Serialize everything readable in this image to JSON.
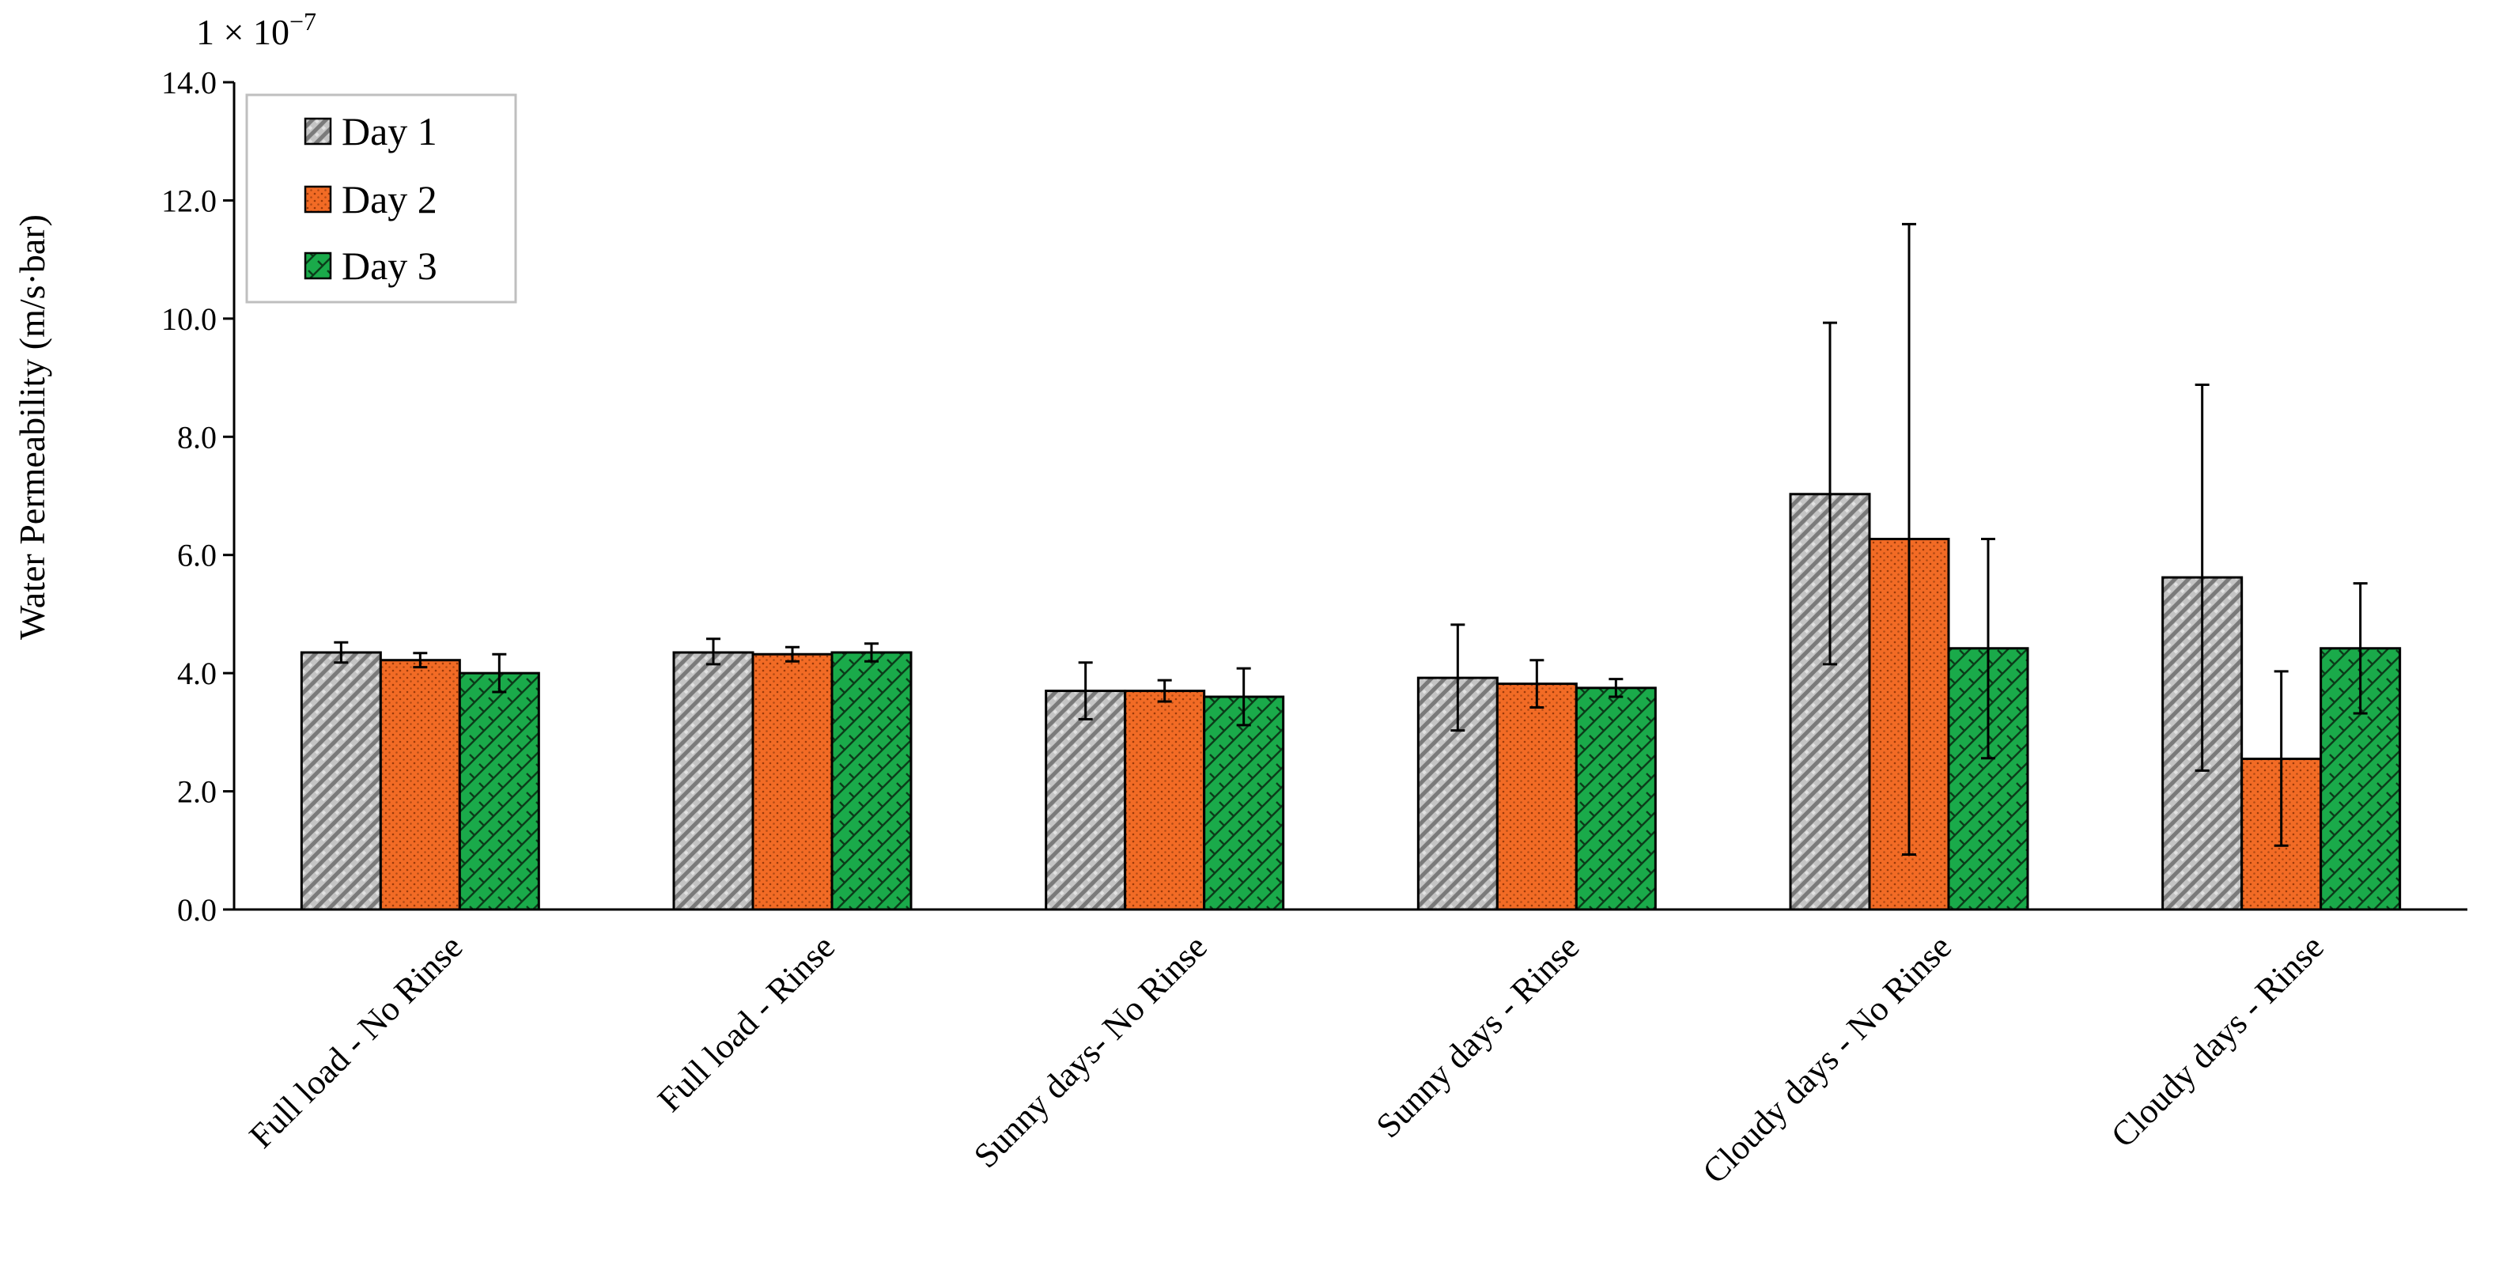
{
  "chart_data": {
    "type": "bar",
    "scale_label": {
      "base": "1 × 10",
      "exponent": "−7"
    },
    "ylabel": "Water Permeability (m/s·bar)",
    "xlabel": "",
    "ylim": [
      0,
      14
    ],
    "yticks": [
      "0.0",
      "2.0",
      "4.0",
      "6.0",
      "8.0",
      "10.0",
      "12.0",
      "14.0"
    ],
    "ytick_values": [
      0,
      2,
      4,
      6,
      8,
      10,
      12,
      14
    ],
    "categories": [
      "Full load - No Rinse",
      "Full load - Rinse",
      "Sunny days- No Rinse",
      "Sunny days - Rinse",
      "Cloudy days - No Rinse",
      "Cloudy days - Rinse"
    ],
    "series": [
      {
        "name": "Day 1",
        "color": "#b8b8b8",
        "pattern": "diagonal-hatch",
        "values": [
          4.35,
          4.35,
          3.7,
          3.92,
          7.03,
          5.62
        ],
        "error_low": [
          4.18,
          4.15,
          3.22,
          3.03,
          4.15,
          2.35
        ],
        "error_high": [
          4.52,
          4.58,
          4.18,
          4.82,
          9.93,
          8.88
        ]
      },
      {
        "name": "Day 2",
        "color": "#f07a35",
        "pattern": "dots",
        "values": [
          4.22,
          4.32,
          3.7,
          3.82,
          6.27,
          2.55
        ],
        "error_low": [
          4.1,
          4.2,
          3.52,
          3.42,
          0.93,
          1.08
        ],
        "error_high": [
          4.34,
          4.44,
          3.88,
          4.22,
          11.6,
          4.03
        ]
      },
      {
        "name": "Day 3",
        "color": "#1eaa4e",
        "pattern": "crosshatch",
        "values": [
          4.0,
          4.35,
          3.6,
          3.75,
          4.42,
          4.42
        ],
        "error_low": [
          3.68,
          4.2,
          3.12,
          3.6,
          2.56,
          3.32
        ],
        "error_high": [
          4.32,
          4.5,
          4.08,
          3.9,
          6.27,
          5.52
        ]
      }
    ],
    "legend_position": "top-left",
    "grid": false
  }
}
